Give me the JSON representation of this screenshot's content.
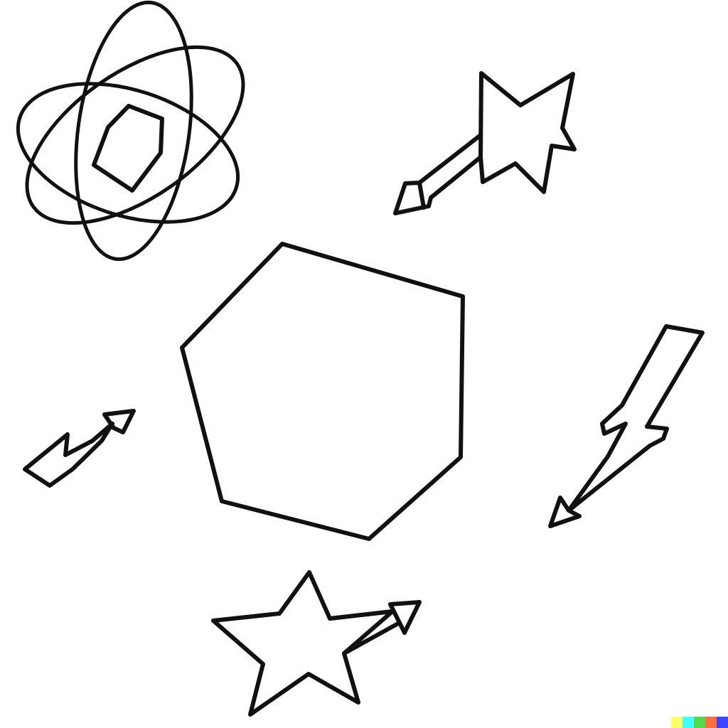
{
  "drawing": {
    "ink_color": "#111111",
    "background_color": "#ffffff",
    "elements": [
      "atom-icon",
      "shooting-star-icon",
      "hexagon-shape",
      "zigzag-arrow-icon",
      "lightning-bolt-icon",
      "star-with-arrow-icon"
    ]
  },
  "watermark": {
    "colors": [
      "#ffff66",
      "#42ffff",
      "#51da4c",
      "#ff6e3c",
      "#3c46ff"
    ]
  }
}
